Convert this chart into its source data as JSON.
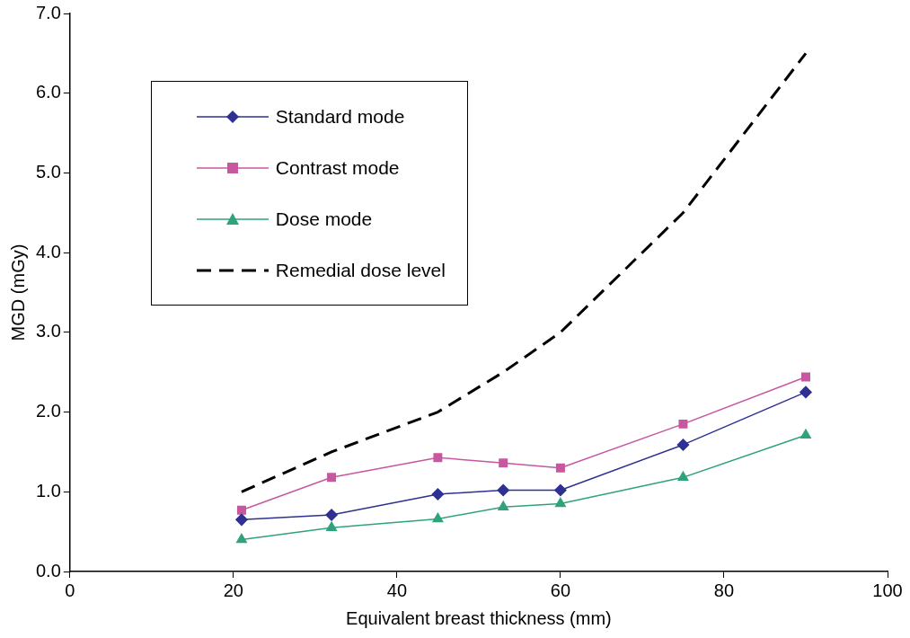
{
  "chart_data": {
    "type": "line",
    "xlabel": "Equivalent breast thickness (mm)",
    "ylabel": "MGD (mGy)",
    "x": [
      21,
      32,
      45,
      53,
      60,
      75,
      90
    ],
    "xlim": [
      0,
      100
    ],
    "xticks": [
      0,
      20,
      40,
      60,
      80,
      100
    ],
    "ylim": [
      0,
      7
    ],
    "yticks": [
      {
        "value": 0,
        "label": "0.0"
      },
      {
        "value": 1,
        "label": "1.0"
      },
      {
        "value": 2,
        "label": "2.0"
      },
      {
        "value": 3,
        "label": "3.0"
      },
      {
        "value": 4,
        "label": "4.0"
      },
      {
        "value": 5,
        "label": "5.0"
      },
      {
        "value": 6,
        "label": "6.0"
      },
      {
        "value": 7,
        "label": "7.0"
      }
    ],
    "grid": false,
    "legend": "top left",
    "series": [
      {
        "name": "Standard mode",
        "color": "#2e3192",
        "marker": "diamond",
        "line_style": "solid",
        "values": [
          0.65,
          0.71,
          0.97,
          1.02,
          1.02,
          1.59,
          2.25
        ]
      },
      {
        "name": "Contrast mode",
        "color": "#c7579f",
        "marker": "square",
        "line_style": "solid",
        "values": [
          0.77,
          1.18,
          1.43,
          1.36,
          1.3,
          1.85,
          2.44
        ]
      },
      {
        "name": "Dose mode",
        "color": "#2fa37a",
        "marker": "triangle",
        "line_style": "solid",
        "values": [
          0.4,
          0.55,
          0.66,
          0.81,
          0.85,
          1.18,
          1.71
        ]
      },
      {
        "name": "Remedial dose level",
        "color": "#000000",
        "marker": "none",
        "line_style": "dashed",
        "values": [
          1.0,
          1.5,
          2.0,
          2.5,
          3.0,
          4.5,
          6.5
        ]
      }
    ]
  }
}
